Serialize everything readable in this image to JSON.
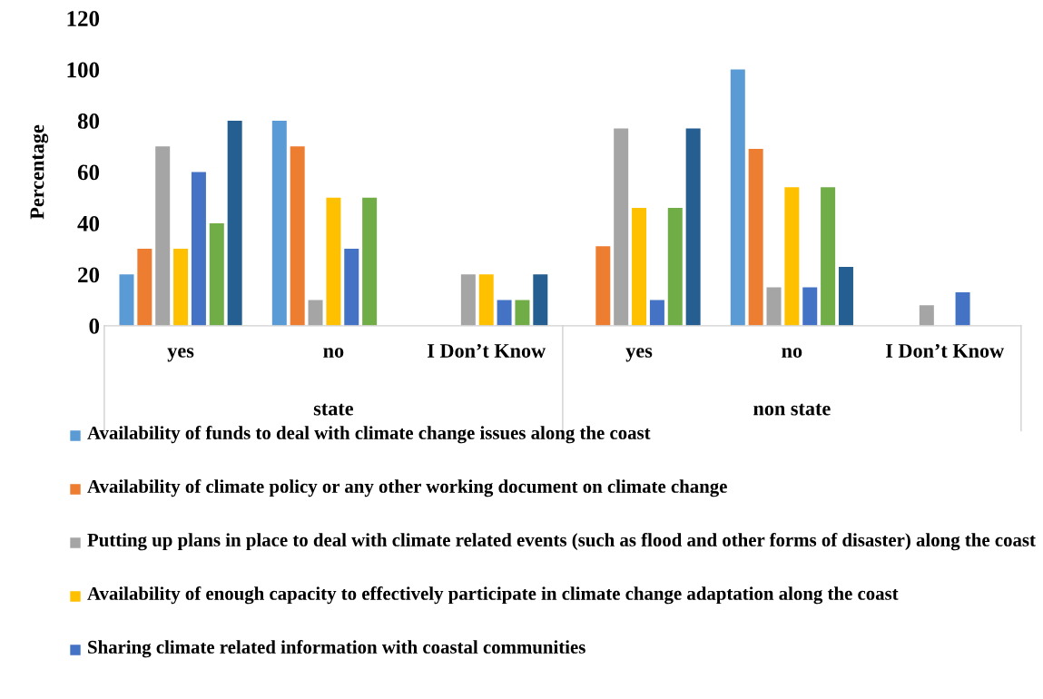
{
  "chart_data": {
    "type": "bar",
    "ylabel": "Percentage",
    "categories": [
      "yes",
      "no",
      "I Don’t Know",
      "yes",
      "no",
      "I Don’t Know"
    ],
    "annotations": [
      "state",
      "non state"
    ],
    "ylim": [
      0,
      120
    ],
    "yticks": [
      0,
      20,
      40,
      60,
      80,
      100,
      120
    ],
    "grid": false,
    "legend": "bottom",
    "series": [
      {
        "name": "Availability of funds to deal with climate change issues along the coast",
        "color": "#5b9bd5",
        "values": [
          20,
          80,
          0,
          0,
          100,
          0
        ]
      },
      {
        "name": "Availability of climate policy or any other working document on climate change",
        "color": "#ed7d31",
        "values": [
          30,
          70,
          0,
          31,
          69,
          0
        ]
      },
      {
        "name": "Putting up plans in place to deal with climate related events (such as flood and other forms of disaster) along the coast",
        "color": "#a5a5a5",
        "values": [
          70,
          10,
          20,
          77,
          15,
          8
        ]
      },
      {
        "name": "Availability of enough capacity to effectively participate in climate change adaptation along the coast",
        "color": "#ffc000",
        "values": [
          30,
          50,
          20,
          46,
          54,
          0
        ]
      },
      {
        "name": "Sharing climate related information with coastal communities",
        "color": "#4472c4",
        "values": [
          60,
          30,
          10,
          10,
          15,
          13
        ]
      },
      {
        "color": "#70ad47",
        "values": [
          40,
          50,
          10,
          46,
          54,
          0
        ]
      },
      {
        "color": "#255e91",
        "values": [
          80,
          0,
          20,
          77,
          23,
          0
        ]
      }
    ]
  }
}
